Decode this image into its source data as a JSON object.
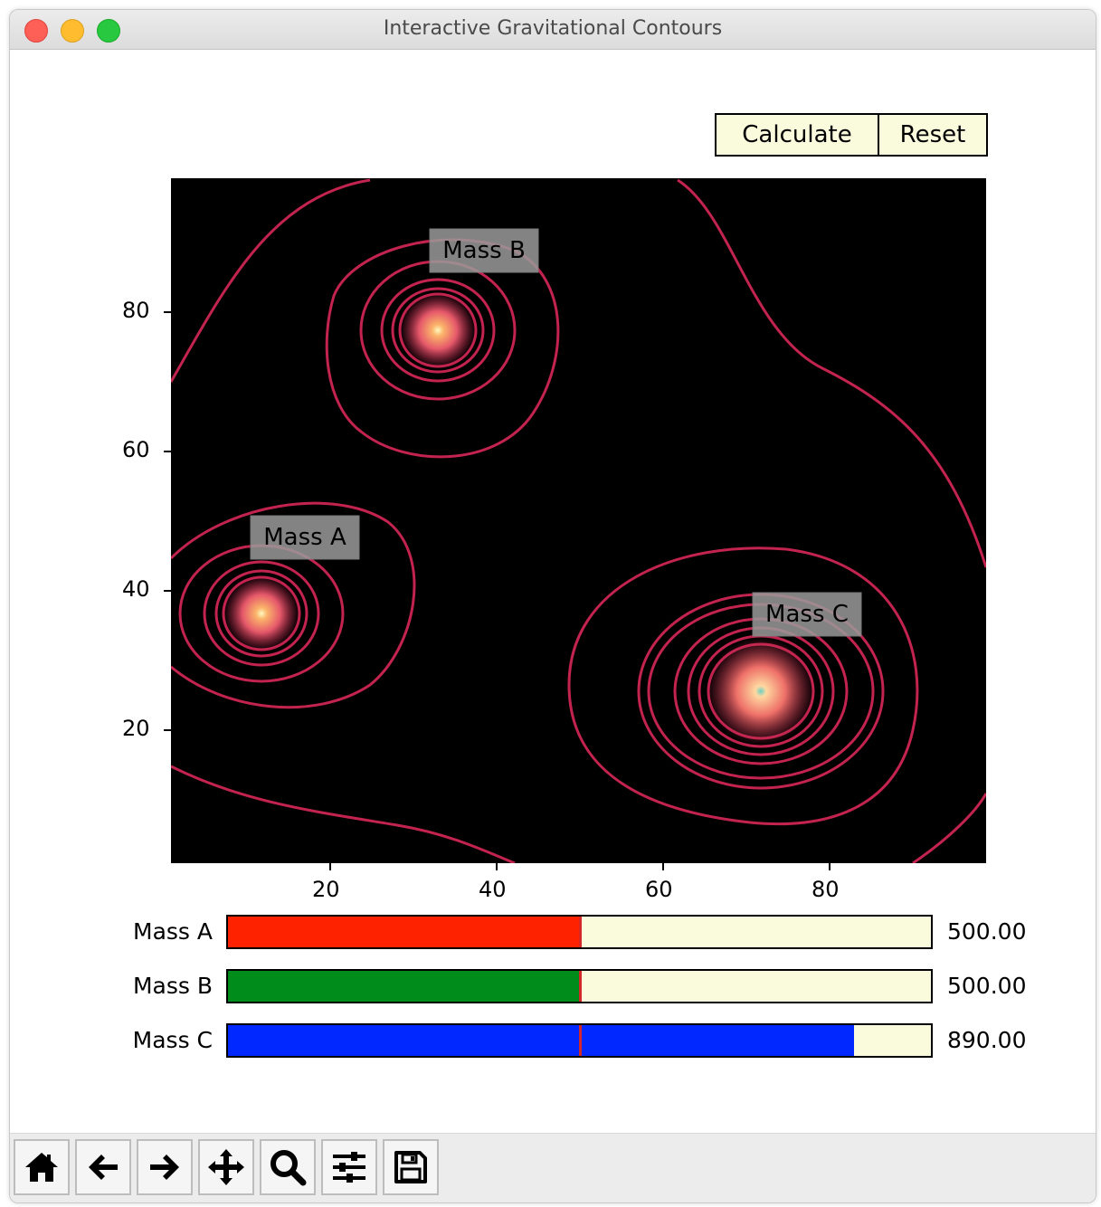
{
  "window": {
    "title": "Interactive Gravitational Contours"
  },
  "buttons": {
    "calculate": "Calculate",
    "reset": "Reset"
  },
  "plot": {
    "background": "#000000",
    "contour_color": "#c2234f",
    "xticks": [
      "20",
      "40",
      "60",
      "80"
    ],
    "yticks": [
      "80",
      "60",
      "40",
      "20"
    ],
    "masses": [
      {
        "label": "Mass A",
        "x": 11.5,
        "y": 36.5
      },
      {
        "label": "Mass B",
        "x": 33,
        "y": 78
      },
      {
        "label": "Mass C",
        "x": 72,
        "y": 26
      }
    ]
  },
  "sliders": [
    {
      "label": "Mass A",
      "value": "500.00",
      "fraction": 0.5,
      "color": "#ff2200"
    },
    {
      "label": "Mass B",
      "value": "500.00",
      "fraction": 0.5,
      "color": "#008c1a"
    },
    {
      "label": "Mass C",
      "value": "890.00",
      "fraction": 0.89,
      "color": "#0028ff"
    }
  ],
  "toolbar": {
    "tools": [
      "home-icon",
      "back-icon",
      "forward-icon",
      "pan-icon",
      "zoom-icon",
      "configure-icon",
      "save-icon"
    ]
  }
}
